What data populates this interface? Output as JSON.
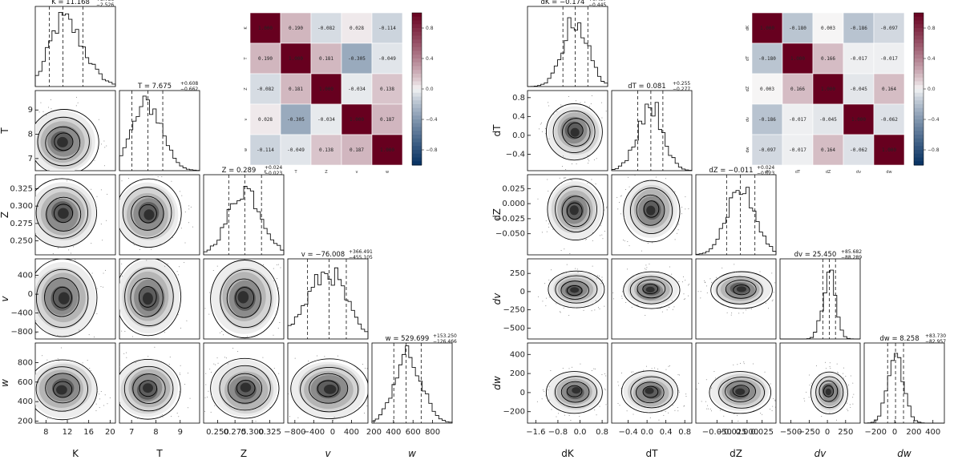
{
  "colors": {
    "density": "#222222",
    "frame": "#000000",
    "cmap_low": "#053061",
    "cmap_mid": "#f7f7f7",
    "cmap_high": "#67001f"
  },
  "corners": [
    {
      "params": [
        "K",
        "T",
        "Z",
        "v",
        "w"
      ],
      "axis_labels": [
        "K",
        "T",
        "Z",
        "v",
        "w"
      ],
      "italic_labels": [
        false,
        false,
        false,
        true,
        true
      ],
      "ranges": [
        [
          6,
          21
        ],
        [
          6.5,
          9.8
        ],
        [
          0.23,
          0.345
        ],
        [
          -950,
          750
        ],
        [
          180,
          1000
        ]
      ],
      "ticks": [
        [
          {
            "v": 8,
            "l": "8"
          },
          {
            "v": 12,
            "l": "12"
          },
          {
            "v": 16,
            "l": "16"
          },
          {
            "v": 20,
            "l": "20"
          }
        ],
        [
          {
            "v": 7,
            "l": "7"
          },
          {
            "v": 8,
            "l": "8"
          },
          {
            "v": 9,
            "l": "9"
          }
        ],
        [
          {
            "v": 0.25,
            "l": "0.250"
          },
          {
            "v": 0.275,
            "l": "0.275"
          },
          {
            "v": 0.3,
            "l": "0.300"
          },
          {
            "v": 0.325,
            "l": "0.325"
          }
        ],
        [
          {
            "v": -800,
            "l": "−800"
          },
          {
            "v": -400,
            "l": "−400"
          },
          {
            "v": 0,
            "l": "0"
          },
          {
            "v": 400,
            "l": "400"
          }
        ],
        [
          {
            "v": 200,
            "l": "200"
          },
          {
            "v": 400,
            "l": "400"
          },
          {
            "v": 600,
            "l": "600"
          },
          {
            "v": 800,
            "l": "800"
          }
        ]
      ],
      "titles": [
        {
          "name": "K",
          "val": "11.168",
          "up": "+3.736",
          "lo": "−2.526"
        },
        {
          "name": "T",
          "val": "7.675",
          "up": "+0.608",
          "lo": "−0.662"
        },
        {
          "name": "Z",
          "val": "0.289",
          "up": "+0.024",
          "lo": "−0.023"
        },
        {
          "name": "v",
          "val": "−76.008",
          "up": "+366.491",
          "lo": "−455.105"
        },
        {
          "name": "w",
          "val": "529.699",
          "up": "+153.250",
          "lo": "−126.466"
        }
      ],
      "quantiles": [
        [
          8.642,
          11.168,
          14.904
        ],
        [
          7.013,
          7.675,
          8.283
        ],
        [
          0.266,
          0.289,
          0.313
        ],
        [
          -531.113,
          -76.008,
          290.483
        ],
        [
          403.233,
          529.699,
          682.949
        ]
      ]
    },
    {
      "params": [
        "dK",
        "dT",
        "dZ",
        "dv",
        "dw"
      ],
      "axis_labels": [
        "dK",
        "dT",
        "dZ",
        "dv",
        "dw"
      ],
      "italic_labels": [
        false,
        false,
        false,
        true,
        true
      ],
      "ranges": [
        [
          -1.9,
          1.0
        ],
        [
          -0.75,
          0.95
        ],
        [
          -0.085,
          0.048
        ],
        [
          -650,
          450
        ],
        [
          -320,
          520
        ]
      ],
      "ticks": [
        [
          {
            "v": -1.6,
            "l": "−1.6"
          },
          {
            "v": -0.8,
            "l": "−0.8"
          },
          {
            "v": 0,
            "l": "0.0"
          },
          {
            "v": 0.8,
            "l": "0.8"
          }
        ],
        [
          {
            "v": -0.4,
            "l": "−0.4"
          },
          {
            "v": 0,
            "l": "0.0"
          },
          {
            "v": 0.4,
            "l": "0.4"
          },
          {
            "v": 0.8,
            "l": "0.8"
          }
        ],
        [
          {
            "v": -0.05,
            "l": "−0.050"
          },
          {
            "v": -0.025,
            "l": "−0.025"
          },
          {
            "v": 0,
            "l": "0.000"
          },
          {
            "v": 0.025,
            "l": "0.025"
          }
        ],
        [
          {
            "v": -500,
            "l": "−500"
          },
          {
            "v": -250,
            "l": "−250"
          },
          {
            "v": 0,
            "l": "0"
          },
          {
            "v": 250,
            "l": "250"
          }
        ],
        [
          {
            "v": -200,
            "l": "−200"
          },
          {
            "v": 0,
            "l": "0"
          },
          {
            "v": 200,
            "l": "200"
          },
          {
            "v": 400,
            "l": "400"
          }
        ]
      ],
      "titles": [
        {
          "name": "dK",
          "val": "−0.174",
          "up": "+0.457",
          "lo": "−0.445"
        },
        {
          "name": "dT",
          "val": "0.081",
          "up": "+0.255",
          "lo": "−0.277"
        },
        {
          "name": "dZ",
          "val": "−0.011",
          "up": "+0.024",
          "lo": "−0.023"
        },
        {
          "name": "dv",
          "val": "25.450",
          "up": "+85.682",
          "lo": "−88.289"
        },
        {
          "name": "dw",
          "val": "8.258",
          "up": "+83.730",
          "lo": "−82.957"
        }
      ],
      "quantiles": [
        [
          -0.619,
          -0.174,
          0.283
        ],
        [
          -0.196,
          0.081,
          0.336
        ],
        [
          -0.034,
          -0.011,
          0.013
        ],
        [
          -62.839,
          25.45,
          111.132
        ],
        [
          -74.699,
          8.258,
          91.988
        ]
      ]
    }
  ],
  "chart_data": [
    {
      "type": "heatmap",
      "labels": [
        "K",
        "T",
        "Z",
        "v",
        "w"
      ],
      "matrix": [
        [
          1.0,
          0.19,
          -0.082,
          0.028,
          -0.114
        ],
        [
          0.19,
          1.0,
          0.181,
          -0.305,
          -0.049
        ],
        [
          -0.082,
          0.181,
          1.0,
          -0.034,
          0.138
        ],
        [
          0.028,
          -0.305,
          -0.034,
          1.0,
          0.187
        ],
        [
          -0.114,
          -0.049,
          0.138,
          0.187,
          1.0
        ]
      ],
      "colorbar_ticks": [
        "0.8",
        "0.4",
        "0.0",
        "−0.4",
        "−0.8"
      ],
      "vmin": -1,
      "vmax": 1
    },
    {
      "type": "heatmap",
      "labels": [
        "dK",
        "dT",
        "dZ",
        "dv",
        "dw"
      ],
      "matrix": [
        [
          1.0,
          -0.18,
          0.003,
          -0.186,
          -0.097
        ],
        [
          -0.18,
          1.0,
          0.166,
          -0.017,
          -0.017
        ],
        [
          0.003,
          0.166,
          1.0,
          -0.045,
          0.164
        ],
        [
          -0.186,
          -0.017,
          -0.045,
          1.0,
          -0.062
        ],
        [
          -0.097,
          -0.017,
          0.164,
          -0.062,
          1.0
        ]
      ],
      "colorbar_ticks": [
        "0.8",
        "0.4",
        "0.0",
        "−0.4",
        "−0.8"
      ],
      "vmin": -1,
      "vmax": 1
    }
  ]
}
